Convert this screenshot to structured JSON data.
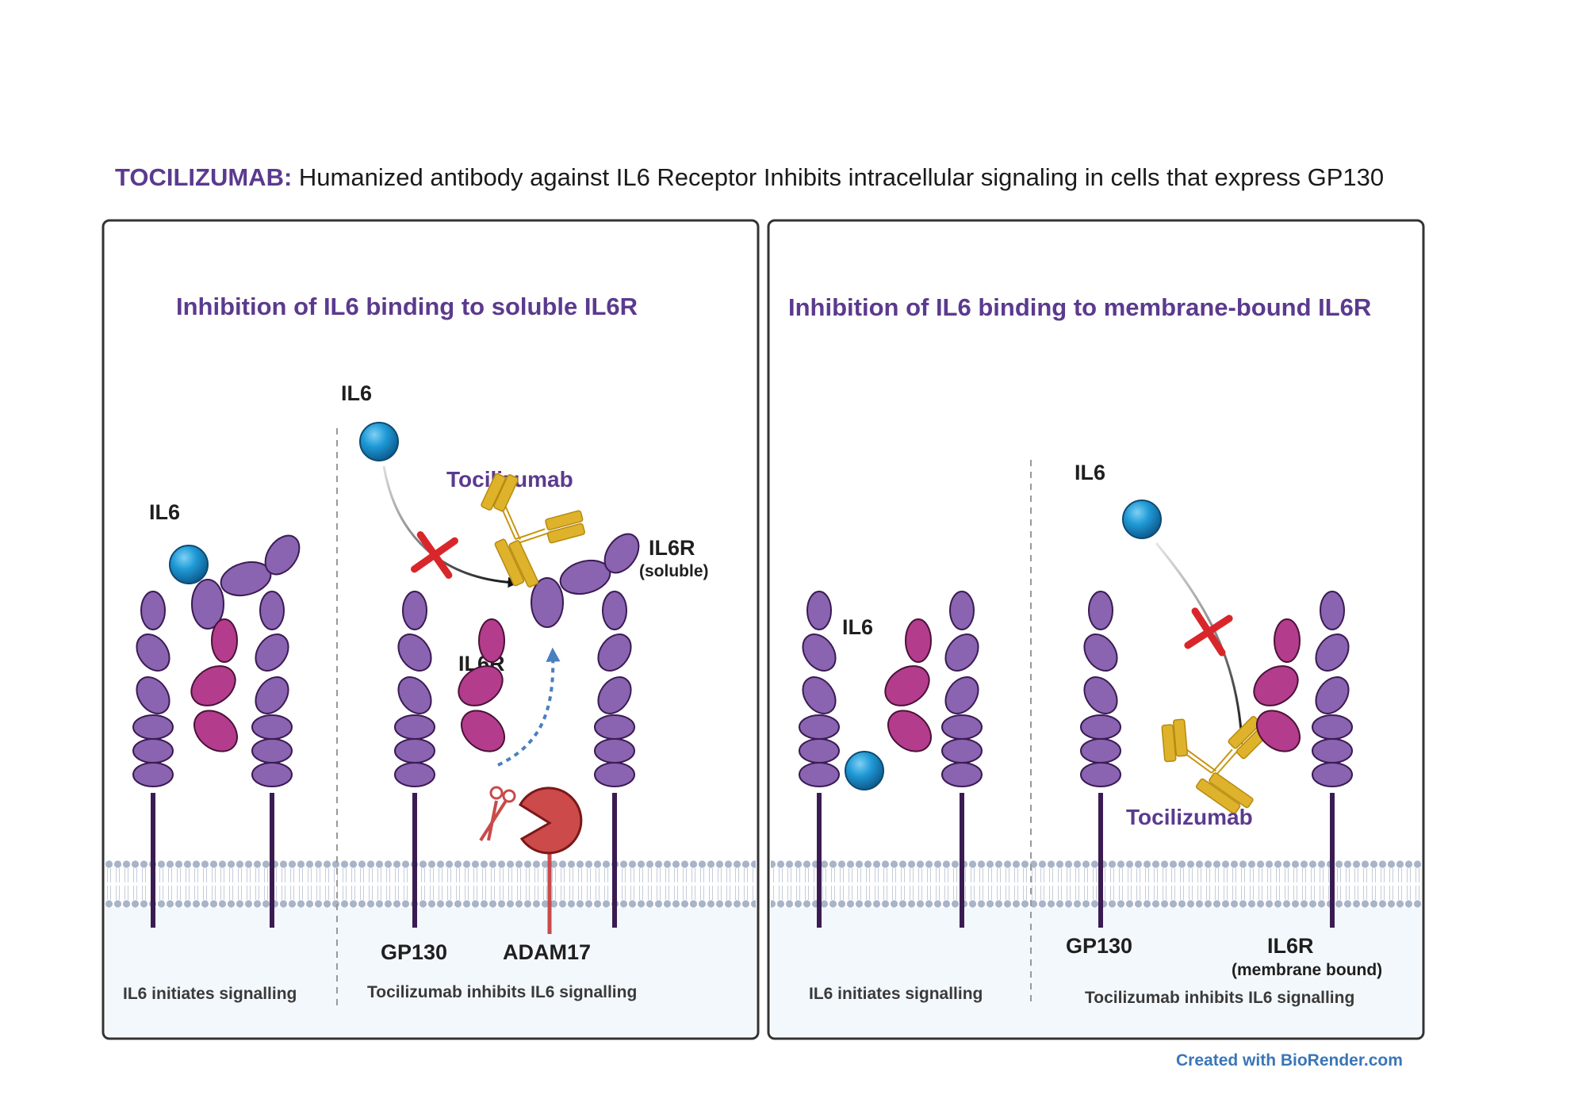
{
  "headline": {
    "drug": "TOCILIZUMAB:",
    "text": " Humanized antibody against IL6 Receptor Inhibits intracellular signaling in cells that express GP130"
  },
  "panels": [
    {
      "title": "Inhibition of IL6 binding to soluble IL6R",
      "left_caption": "IL6  initiates signalling",
      "right_caption": "Tocilizumab inhibits IL6 signalling",
      "labels": {
        "il6_left": "IL6",
        "il6_top": "IL6",
        "tocilizumab": "Tocilizumab",
        "il6r_soluble": "IL6R",
        "soluble_note": "(soluble)",
        "il6r_membrane": "IL6R",
        "gp130": "GP130",
        "adam17": "ADAM17"
      }
    },
    {
      "title": "Inhibition of IL6 binding to membrane-bound IL6R",
      "left_caption": "IL6  initiates signalling",
      "right_caption": "Tocilizumab inhibits IL6 signalling",
      "labels": {
        "il6_left": "IL6",
        "il6_top": "IL6",
        "tocilizumab": "Tocilizumab",
        "gp130": "GP130",
        "il6r": "IL6R",
        "membrane_note": "(membrane bound)"
      }
    }
  ],
  "credit": "Created with BioRender.com",
  "colors": {
    "gp130": "#8a63b1",
    "il6r": "#b43c8c",
    "il6": "#1a8fcc",
    "antibody": "#dfb22c",
    "adam17": "#c94a4a",
    "block": "#d9262a",
    "title": "#5b3a8e",
    "membrane": "#a8b4c8"
  }
}
